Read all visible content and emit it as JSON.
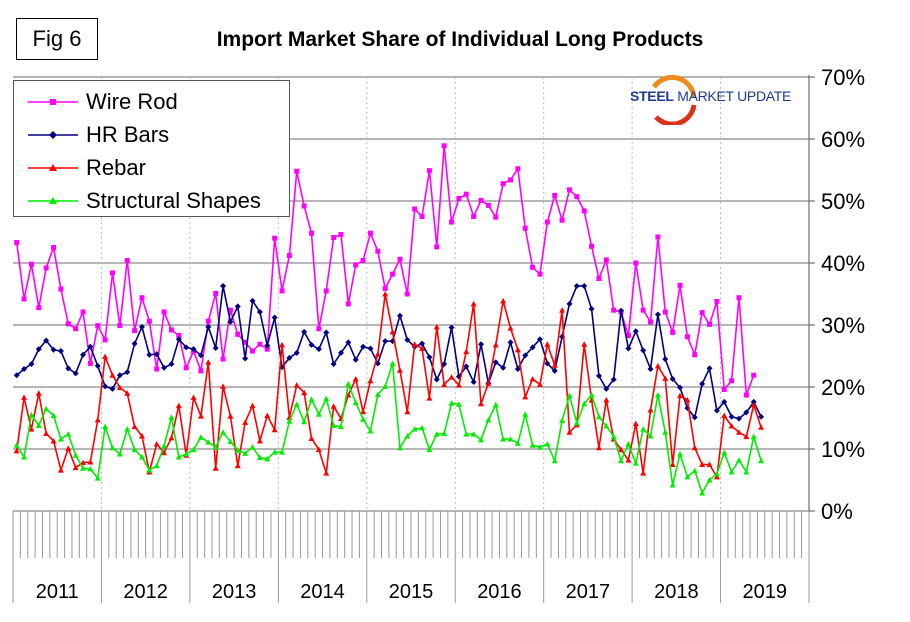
{
  "figure_label": "Fig 6",
  "logo": {
    "part1": "STEEL",
    "part2": "MARKET",
    "part3": "UPDATE"
  },
  "chart_data": {
    "type": "line",
    "title": "Import Market Share of Individual Long Products",
    "xlabel": "",
    "ylabel": "",
    "ylim": [
      0,
      70
    ],
    "y_ticks": [
      "0%",
      "10%",
      "20%",
      "30%",
      "40%",
      "50%",
      "60%",
      "70%"
    ],
    "y_tick_values": [
      0,
      10,
      20,
      30,
      40,
      50,
      60,
      70
    ],
    "y_axis_side": "right",
    "grid": true,
    "legend_position": "top-left",
    "x_unit": "month",
    "year_labels": [
      "2011",
      "2012",
      "2013",
      "2014",
      "2015",
      "2016",
      "2017",
      "2018",
      "2019"
    ],
    "series": [
      {
        "name": "Wire Rod",
        "color": "#ff00ff",
        "marker": "square",
        "values": [
          43.3,
          34.2,
          39.8,
          32.8,
          39.2,
          42.5,
          35.8,
          30.2,
          29.4,
          32.1,
          23.8,
          29.9,
          27.6,
          38.4,
          29.9,
          40.4,
          29.1,
          34.4,
          30.6,
          22.9,
          32.1,
          29.2,
          28.3,
          23.1,
          25.8,
          22.6,
          30.6,
          35.1,
          24.5,
          32.4,
          28.5,
          27.2,
          25.8,
          26.9,
          26.1,
          44.0,
          35.5,
          41.2,
          54.8,
          49.2,
          44.8,
          29.4,
          35.5,
          44.1,
          44.6,
          33.4,
          39.7,
          40.4,
          44.8,
          41.9,
          35.9,
          38.2,
          40.6,
          35.0,
          48.7,
          47.5,
          54.9,
          42.6,
          58.9,
          46.6,
          50.4,
          51.1,
          47.5,
          50.1,
          49.3,
          47.4,
          52.8,
          53.4,
          55.2,
          45.6,
          39.3,
          38.2,
          46.6,
          50.9,
          46.9,
          51.8,
          50.7,
          48.4,
          42.7,
          37.5,
          40.5,
          32.4,
          32.1,
          28.3,
          40.0,
          32.4,
          30.5,
          44.2,
          32.1,
          28.8,
          36.4,
          28.1,
          25.2,
          32.0,
          30.1,
          33.8,
          19.6,
          21.0,
          34.4,
          18.7,
          21.9
        ]
      },
      {
        "name": "HR Bars",
        "color": "#000080",
        "marker": "diamond",
        "values": [
          21.9,
          22.9,
          23.7,
          26.1,
          27.5,
          26.0,
          25.8,
          23.0,
          22.2,
          25.2,
          26.5,
          23.4,
          20.1,
          19.7,
          21.9,
          22.4,
          27.0,
          29.7,
          25.2,
          25.3,
          23.1,
          23.7,
          27.7,
          26.4,
          26.1,
          25.1,
          29.7,
          26.3,
          36.3,
          30.5,
          33.0,
          24.6,
          33.9,
          32.1,
          26.7,
          31.2,
          23.2,
          24.7,
          25.5,
          28.9,
          26.8,
          26.1,
          28.8,
          23.7,
          25.5,
          27.2,
          24.4,
          26.5,
          26.2,
          23.8,
          27.4,
          27.4,
          31.5,
          27.6,
          26.5,
          27.0,
          24.8,
          21.2,
          23.7,
          29.6,
          21.7,
          23.3,
          20.8,
          26.9,
          20.6,
          24.0,
          23.1,
          27.2,
          22.9,
          25.1,
          26.4,
          27.7,
          23.8,
          22.6,
          28.1,
          33.4,
          36.3,
          36.3,
          32.6,
          21.8,
          19.7,
          21.2,
          32.3,
          26.2,
          29.0,
          25.9,
          22.9,
          31.7,
          24.5,
          21.3,
          19.9,
          16.6,
          15.1,
          20.5,
          23.0,
          16.2,
          17.6,
          15.2,
          14.9,
          15.9,
          17.6,
          15.2
        ]
      },
      {
        "name": "Rebar",
        "color": "#ff0000",
        "marker": "triangle",
        "values": [
          9.7,
          18.3,
          13.2,
          19.0,
          12.5,
          11.3,
          6.6,
          10.1,
          7.0,
          7.8,
          7.9,
          14.7,
          24.9,
          21.9,
          19.9,
          19.0,
          13.6,
          12.1,
          6.3,
          10.8,
          9.4,
          11.8,
          17.0,
          9.0,
          18.3,
          15.3,
          24.0,
          6.9,
          20.1,
          15.3,
          7.3,
          14.3,
          17.0,
          11.3,
          15.4,
          13.1,
          26.8,
          15.1,
          20.3,
          19.1,
          11.7,
          9.9,
          6.1,
          16.9,
          14.9,
          18.7,
          21.3,
          16.0,
          21.0,
          25.3,
          35.0,
          28.9,
          22.7,
          16.0,
          26.9,
          26.2,
          18.2,
          29.7,
          20.4,
          21.6,
          20.3,
          25.7,
          33.4,
          17.3,
          20.6,
          26.8,
          33.9,
          29.5,
          26.0,
          18.4,
          21.3,
          20.4,
          26.9,
          23.5,
          32.4,
          12.7,
          13.9,
          26.9,
          17.9,
          10.2,
          17.9,
          11.6,
          9.9,
          8.2,
          14.1,
          6.1,
          16.3,
          23.4,
          21.4,
          7.5,
          18.6,
          17.9,
          10.2,
          7.5,
          7.5,
          5.5,
          15.4,
          13.7,
          12.7,
          12.0,
          17.1,
          13.5
        ]
      },
      {
        "name": "Structural Shapes",
        "color": "#00ee00",
        "marker": "triangle",
        "values": [
          10.6,
          8.7,
          15.5,
          13.8,
          16.5,
          15.4,
          11.6,
          12.4,
          9.0,
          6.9,
          6.8,
          5.3,
          13.6,
          10.2,
          9.2,
          13.2,
          9.9,
          8.7,
          6.6,
          7.3,
          10.5,
          15.1,
          8.7,
          9.2,
          9.9,
          11.9,
          11.1,
          10.3,
          12.7,
          11.2,
          9.8,
          9.3,
          10.3,
          8.6,
          8.4,
          9.5,
          9.5,
          14.5,
          17.2,
          14.4,
          18.0,
          15.6,
          18.1,
          13.8,
          13.6,
          20.5,
          17.5,
          14.8,
          12.9,
          18.8,
          20.1,
          23.8,
          10.2,
          12.1,
          13.2,
          13.4,
          9.9,
          12.4,
          12.5,
          17.4,
          17.2,
          12.4,
          12.4,
          11.5,
          14.7,
          17.1,
          11.6,
          11.6,
          10.9,
          15.6,
          10.6,
          10.3,
          10.8,
          8.1,
          14.6,
          18.6,
          14.2,
          17.3,
          18.7,
          15.2,
          13.7,
          12.0,
          8.1,
          10.8,
          7.7,
          13.2,
          12.1,
          18.7,
          12.7,
          4.2,
          9.2,
          5.5,
          6.5,
          2.9,
          5.0,
          6.0,
          9.4,
          6.3,
          8.2,
          6.3,
          12.0,
          8.1
        ]
      }
    ]
  }
}
